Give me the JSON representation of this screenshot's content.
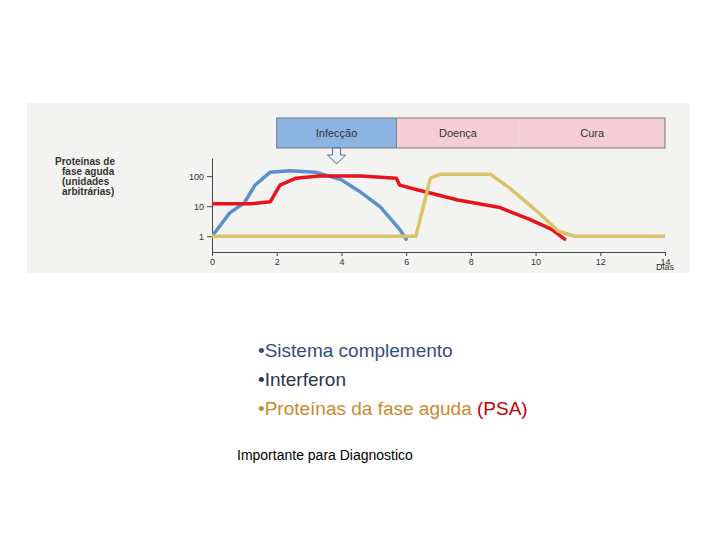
{
  "chart_data": {
    "type": "line",
    "y_label": [
      "Proteínas de",
      "fase aguda",
      "(unidades",
      "arbitrárias)"
    ],
    "x_label": "Dias",
    "log": "y",
    "xlim": [
      0,
      14
    ],
    "xticks": [
      0,
      2,
      4,
      6,
      8,
      10,
      12,
      14
    ],
    "ylim": [
      0.3,
      400
    ],
    "yticks": [
      1,
      10,
      100
    ],
    "phases": [
      {
        "label": "Infecção",
        "start": 2,
        "end": 5.7,
        "color": "#8db3e2"
      },
      {
        "label": "Doença",
        "start": 5.7,
        "end": 9.5,
        "color": "#f4cdd6"
      },
      {
        "label": "Cura",
        "start": 9.5,
        "end": 14,
        "color": "#f4cdd6"
      }
    ],
    "series": [
      {
        "color": "#5b8fd0",
        "x": [
          0,
          0.55,
          1,
          1.33,
          1.8,
          2.4,
          3.2,
          4,
          4.6,
          5.2,
          5.8,
          6
        ],
        "values": [
          1,
          6,
          13,
          50,
          135,
          150,
          135,
          75,
          29,
          9.5,
          1.7,
          0.8
        ]
      },
      {
        "color": "#e8141c",
        "x": [
          0,
          1.2,
          1.8,
          2.1,
          2.6,
          3.3,
          4.6,
          5.7,
          5.8,
          6.4,
          7.6,
          8.9,
          9.8,
          10.5,
          10.9
        ],
        "values": [
          12,
          12,
          14,
          50,
          85,
          100,
          100,
          85,
          50,
          34,
          16,
          9,
          3.7,
          1.7,
          0.8
        ]
      },
      {
        "color": "#d9c46c",
        "x": [
          0,
          6.3,
          6.75,
          7.05,
          8.6,
          9.2,
          10.1,
          10.7,
          11.2,
          14
        ],
        "values": [
          1,
          1,
          85,
          116,
          116,
          40,
          6,
          1.5,
          1,
          1
        ]
      }
    ]
  },
  "bullets": [
    [
      {
        "text": "•Sistema complemento",
        "color": "#2f4f7f"
      }
    ],
    [
      {
        "text": "•Interferon",
        "color": "#2a3550"
      }
    ],
    [
      {
        "text": "•Proteínas da fase aguda ",
        "color": "#c98a2e"
      },
      {
        "text": "(PSA)",
        "color": "#c00000"
      }
    ]
  ],
  "footer": "Importante para Diagnostico"
}
